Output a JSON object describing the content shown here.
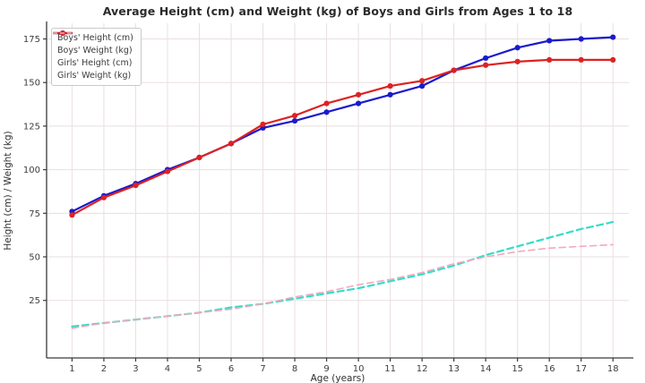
{
  "chart_data": {
    "type": "line",
    "title": "Average Height (cm) and Weight (kg) of Boys and Girls from Ages 1 to 18",
    "xlabel": "Age (years)",
    "ylabel": "Height (cm) / Weight (kg)",
    "x": [
      1,
      2,
      3,
      4,
      5,
      6,
      7,
      8,
      9,
      10,
      11,
      12,
      13,
      14,
      15,
      16,
      17,
      18
    ],
    "xticks": [
      1,
      2,
      3,
      4,
      5,
      6,
      7,
      8,
      9,
      10,
      11,
      12,
      13,
      14,
      15,
      16,
      17,
      18
    ],
    "yticks": [
      25,
      50,
      75,
      100,
      125,
      150,
      175
    ],
    "xlim": [
      0.2,
      18.5
    ],
    "ylim": [
      -8,
      184
    ],
    "grid": true,
    "grid_color": "#eadfdf",
    "axis_color": "#3a3a3a",
    "tick_label_color": "#3d3d3d",
    "legend_position": "upper-left",
    "series": [
      {
        "name": "Boys' Height (cm)",
        "color": "#1a1acd",
        "style": "solid",
        "marker": "circle",
        "line_width": 2.2,
        "values": [
          76,
          85,
          92,
          100,
          107,
          115,
          124,
          128,
          133,
          138,
          143,
          148,
          157,
          164,
          170,
          174,
          175,
          176
        ]
      },
      {
        "name": "Boys' Weight (kg)",
        "color": "#35dcc8",
        "style": "dashed",
        "marker": "none",
        "line_width": 2.2,
        "values": [
          10,
          12,
          14,
          16,
          18,
          21,
          23,
          26,
          29,
          32,
          36,
          40,
          45,
          51,
          56,
          61,
          66,
          70
        ]
      },
      {
        "name": "Girls' Height (cm)",
        "color": "#dd2222",
        "style": "solid",
        "marker": "circle",
        "line_width": 2.2,
        "values": [
          74,
          84,
          91,
          99,
          107,
          115,
          126,
          131,
          138,
          143,
          148,
          151,
          157,
          160,
          162,
          163,
          163,
          163
        ]
      },
      {
        "name": "Girls' Weight (kg)",
        "color": "#f2aabc",
        "style": "dashed",
        "marker": "none",
        "line_width": 1.6,
        "values": [
          9,
          12,
          14,
          16,
          18,
          20,
          23,
          27,
          30,
          34,
          37,
          41,
          46,
          50,
          53,
          55,
          56,
          57
        ]
      }
    ]
  }
}
